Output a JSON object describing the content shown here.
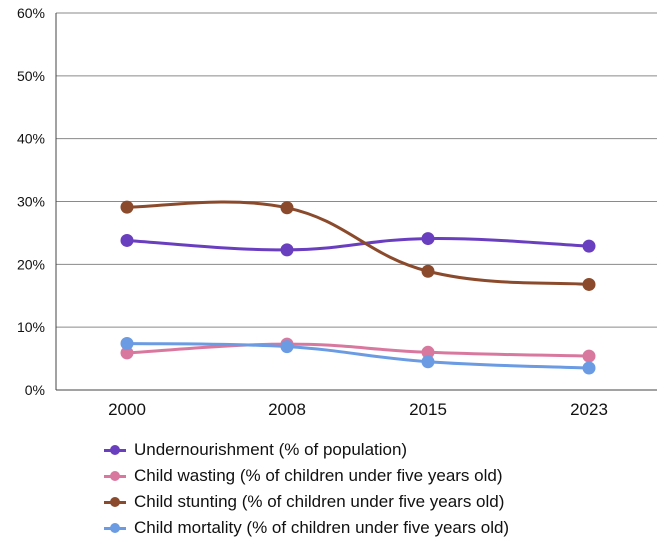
{
  "chart_data": {
    "type": "line",
    "title": "",
    "xlabel": "",
    "ylabel": "",
    "categories": [
      "2000",
      "2008",
      "2015",
      "2023"
    ],
    "y_ticks": [
      "0%",
      "10%",
      "20%",
      "30%",
      "40%",
      "50%",
      "60%"
    ],
    "ylim": [
      0,
      60
    ],
    "grid": "horizontal",
    "legend_position": "bottom",
    "series": [
      {
        "name": "Undernourishment (% of population)",
        "color": "#6a3fbf",
        "values": [
          23.8,
          22.3,
          24.1,
          22.9
        ]
      },
      {
        "name": "Child wasting (% of children under five years old)",
        "color": "#d9789f",
        "values": [
          5.9,
          7.3,
          6.0,
          5.4
        ]
      },
      {
        "name": "Child stunting (% of children under five years old)",
        "color": "#8b4a2b",
        "values": [
          29.1,
          29.0,
          18.9,
          16.8
        ]
      },
      {
        "name": "Child mortality (% of children under five years old)",
        "color": "#6a9be3",
        "values": [
          7.4,
          6.9,
          4.5,
          3.5
        ]
      }
    ]
  }
}
